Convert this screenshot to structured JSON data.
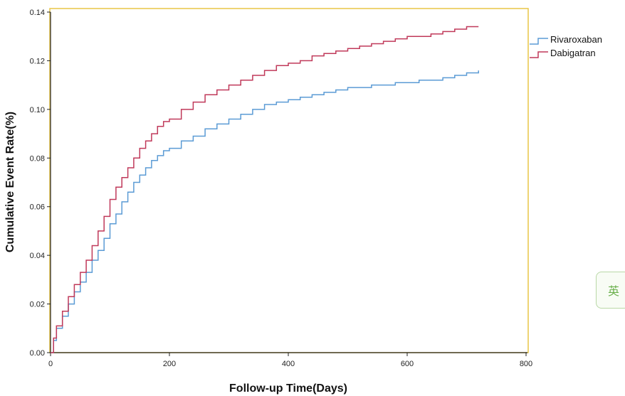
{
  "chart_data": {
    "type": "line",
    "title": "",
    "xlabel": "Follow-up Time(Days)",
    "ylabel": "Cumulative Event Rate(%)",
    "xlim": [
      0,
      800
    ],
    "ylim": [
      0,
      0.14
    ],
    "xticks": [
      0,
      200,
      400,
      600,
      800
    ],
    "yticks": [
      0.0,
      0.02,
      0.04,
      0.06,
      0.08,
      0.1,
      0.12,
      0.14
    ],
    "ytick_labels": [
      "0.00",
      "0.02",
      "0.04",
      "0.06",
      "0.08",
      "0.10",
      "0.12",
      "0.14"
    ],
    "xtick_labels": [
      "0",
      "200",
      "400",
      "600",
      "800"
    ],
    "grid": false,
    "legend_position": "right-top",
    "step": true,
    "series": [
      {
        "name": "Rivaroxaban",
        "color": "#5b9bd5",
        "x": [
          0,
          5,
          10,
          20,
          30,
          40,
          50,
          60,
          70,
          80,
          90,
          100,
          110,
          120,
          130,
          140,
          150,
          160,
          170,
          180,
          190,
          200,
          220,
          240,
          260,
          280,
          300,
          320,
          340,
          360,
          380,
          400,
          420,
          440,
          460,
          480,
          500,
          520,
          540,
          560,
          580,
          600,
          620,
          640,
          660,
          680,
          700,
          720
        ],
        "y": [
          0,
          0.005,
          0.01,
          0.015,
          0.02,
          0.025,
          0.029,
          0.033,
          0.038,
          0.042,
          0.047,
          0.053,
          0.057,
          0.062,
          0.066,
          0.07,
          0.073,
          0.076,
          0.079,
          0.081,
          0.083,
          0.084,
          0.087,
          0.089,
          0.092,
          0.094,
          0.096,
          0.098,
          0.1,
          0.102,
          0.103,
          0.104,
          0.105,
          0.106,
          0.107,
          0.108,
          0.109,
          0.109,
          0.11,
          0.11,
          0.111,
          0.111,
          0.112,
          0.112,
          0.113,
          0.114,
          0.115,
          0.116
        ]
      },
      {
        "name": "Dabigatran",
        "color": "#c0395a",
        "x": [
          0,
          5,
          10,
          20,
          30,
          40,
          50,
          60,
          70,
          80,
          90,
          100,
          110,
          120,
          130,
          140,
          150,
          160,
          170,
          180,
          190,
          200,
          220,
          240,
          260,
          280,
          300,
          320,
          340,
          360,
          380,
          400,
          420,
          440,
          460,
          480,
          500,
          520,
          540,
          560,
          580,
          600,
          620,
          640,
          660,
          680,
          700,
          720
        ],
        "y": [
          0,
          0.006,
          0.011,
          0.017,
          0.023,
          0.028,
          0.033,
          0.038,
          0.044,
          0.05,
          0.056,
          0.063,
          0.068,
          0.072,
          0.076,
          0.08,
          0.084,
          0.087,
          0.09,
          0.093,
          0.095,
          0.096,
          0.1,
          0.103,
          0.106,
          0.108,
          0.11,
          0.112,
          0.114,
          0.116,
          0.118,
          0.119,
          0.12,
          0.122,
          0.123,
          0.124,
          0.125,
          0.126,
          0.127,
          0.128,
          0.129,
          0.13,
          0.13,
          0.131,
          0.132,
          0.133,
          0.134,
          0.134
        ]
      }
    ]
  },
  "plot_frame_color": "#e8c646",
  "ime_indicator": {
    "label": "英",
    "color": "#6ab04c"
  }
}
